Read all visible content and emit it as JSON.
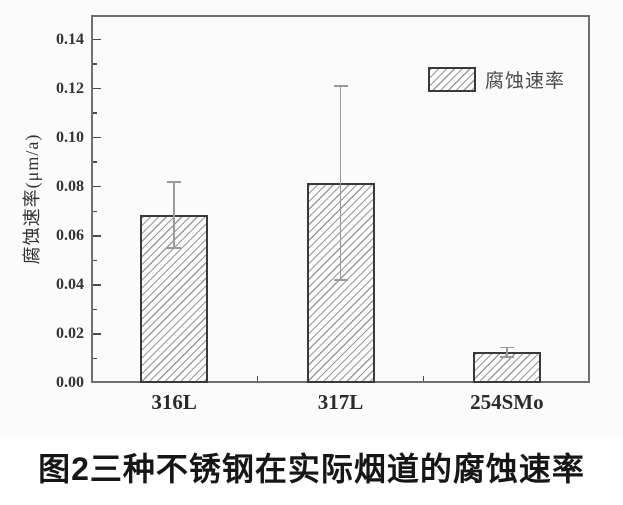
{
  "figure": {
    "caption": "图2三种不锈钢在实际烟道的腐蚀速率"
  },
  "chart_data": {
    "type": "bar",
    "title": "",
    "categories": [
      "316L",
      "317L",
      "254SMo"
    ],
    "series": [
      {
        "name": "腐蚀速率",
        "values": [
          0.0685,
          0.0815,
          0.0125
        ],
        "error_plus": [
          0.0135,
          0.0395,
          0.002
        ],
        "error_minus": [
          0.0135,
          0.0395,
          0.002
        ]
      }
    ],
    "xlabel": "",
    "ylabel": "腐蚀速率(μm/a)",
    "ylim": [
      0,
      0.15
    ],
    "ytick_step": 0.02,
    "ytick_minor_step": 0.01,
    "ytick_labels": [
      "0.00",
      "0.02",
      "0.04",
      "0.06",
      "0.08",
      "0.10",
      "0.12",
      "0.14"
    ],
    "grid": false,
    "legend": {
      "label": "腐蚀速率",
      "position": "top-right",
      "swatch": "diagonal-hatch"
    },
    "bar_style": "white-fill-diagonal-hatch",
    "colors": {
      "chart_bg": "#fbfbfb",
      "frame": "#6f6f6f",
      "axis": "#4a4a4a",
      "bar_fill": "#fdfdfd",
      "bar_border": "#3a3a3a",
      "hatch": "#9a9a9a",
      "error_bar": "#9a9a9a",
      "text": "#333333",
      "caption": "#161616"
    }
  }
}
